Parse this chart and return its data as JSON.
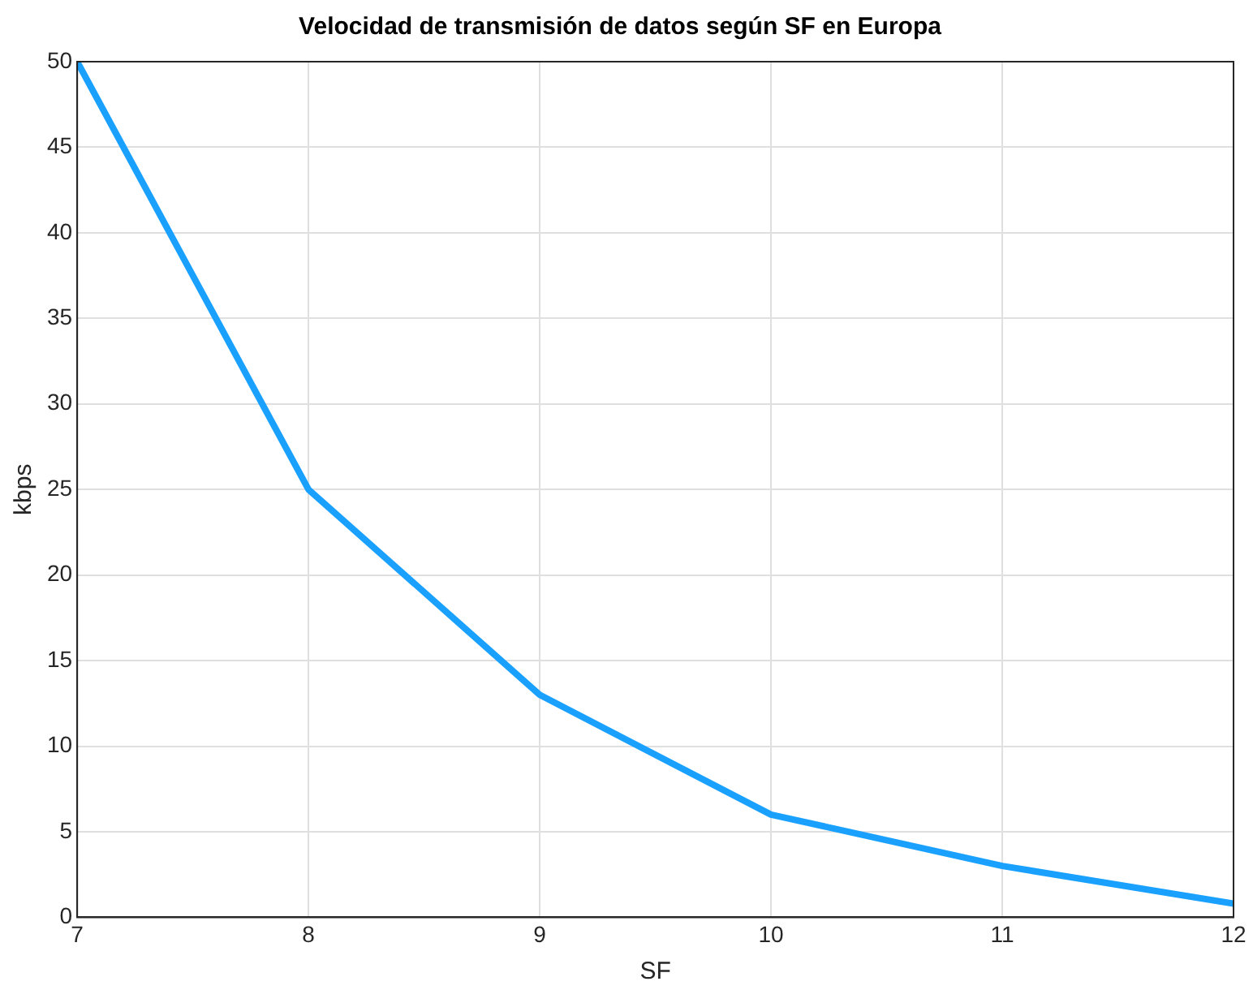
{
  "chart_data": {
    "type": "line",
    "title": "Velocidad de transmisión de datos según SF en Europa",
    "xlabel": "SF",
    "ylabel": "kbps",
    "x": [
      7,
      8,
      9,
      10,
      11,
      12
    ],
    "series": [
      {
        "color": "#1aa1ff",
        "values": [
          50,
          25,
          13,
          6,
          3,
          0.8
        ]
      }
    ],
    "xlim": [
      7,
      12
    ],
    "xticks": [
      7,
      8,
      9,
      10,
      11,
      12
    ],
    "ylim": [
      0,
      50
    ],
    "yticks": [
      0,
      5,
      10,
      15,
      20,
      25,
      30,
      35,
      40,
      45,
      50
    ],
    "grid": true,
    "legend": false,
    "marker": "none",
    "line_style": "solid"
  }
}
